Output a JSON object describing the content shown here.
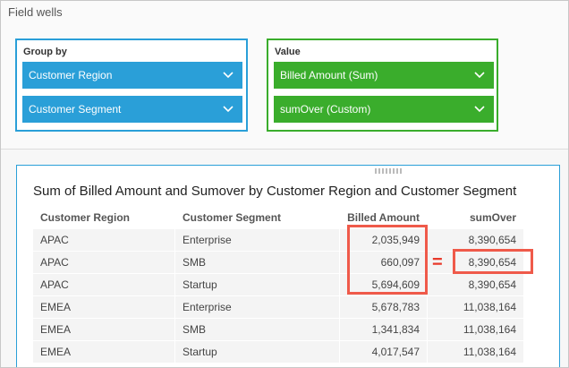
{
  "field_wells": {
    "title": "Field wells",
    "group_by": {
      "label": "Group by",
      "items": [
        "Customer Region",
        "Customer Segment"
      ]
    },
    "value": {
      "label": "Value",
      "items": [
        "Billed Amount (Sum)",
        "sumOver (Custom)"
      ]
    }
  },
  "visual": {
    "title": "Sum of Billed Amount and Sumover by Customer Region and Customer Segment",
    "table": {
      "headers": [
        "Customer Region",
        "Customer Segment",
        "Billed Amount",
        "sumOver"
      ],
      "rows": [
        [
          "APAC",
          "Enterprise",
          "2,035,949",
          "8,390,654"
        ],
        [
          "APAC",
          "SMB",
          "660,097",
          "8,390,654"
        ],
        [
          "APAC",
          "Startup",
          "5,694,609",
          "8,390,654"
        ],
        [
          "EMEA",
          "Enterprise",
          "5,678,783",
          "11,038,164"
        ],
        [
          "EMEA",
          "SMB",
          "1,341,834",
          "11,038,164"
        ],
        [
          "EMEA",
          "Startup",
          "4,017,547",
          "11,038,164"
        ]
      ]
    },
    "annotation": "="
  }
}
